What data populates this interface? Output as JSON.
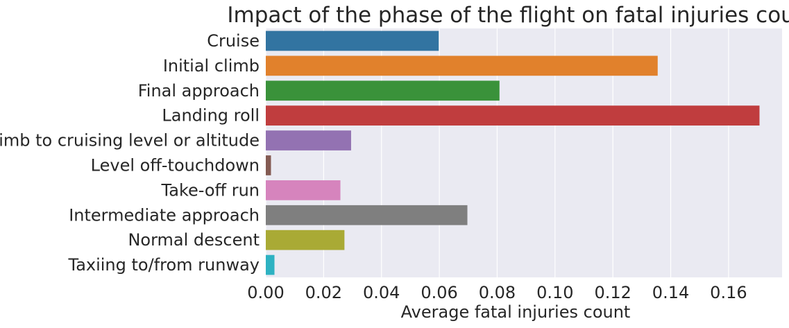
{
  "chart_data": {
    "type": "bar",
    "orientation": "horizontal",
    "title": "Impact of the phase of the flight on fatal injuries count",
    "xlabel": "Average fatal injuries count",
    "ylabel": "",
    "categories": [
      "Cruise",
      "Initial climb",
      "Final approach",
      "Landing roll",
      "Climb to cruising level or altitude",
      "Level off-touchdown",
      "Take-off run",
      "Intermediate approach",
      "Normal descent",
      "Taxiing to/from runway"
    ],
    "values": [
      0.0598,
      0.1355,
      0.0808,
      0.1707,
      0.0295,
      0.0018,
      0.0258,
      0.0697,
      0.0272,
      0.003
    ],
    "colors": [
      "#3274a1",
      "#e1812c",
      "#3a923a",
      "#c03d3e",
      "#9372b2",
      "#845b53",
      "#d684bd",
      "#7f7f7f",
      "#a9aa35",
      "#2eb2c2"
    ],
    "xticks": [
      "0.00",
      "0.02",
      "0.04",
      "0.06",
      "0.08",
      "0.10",
      "0.12",
      "0.14",
      "0.16"
    ],
    "xlim": [
      0,
      0.1785
    ],
    "grid": true,
    "background": "#eaeaf2"
  }
}
